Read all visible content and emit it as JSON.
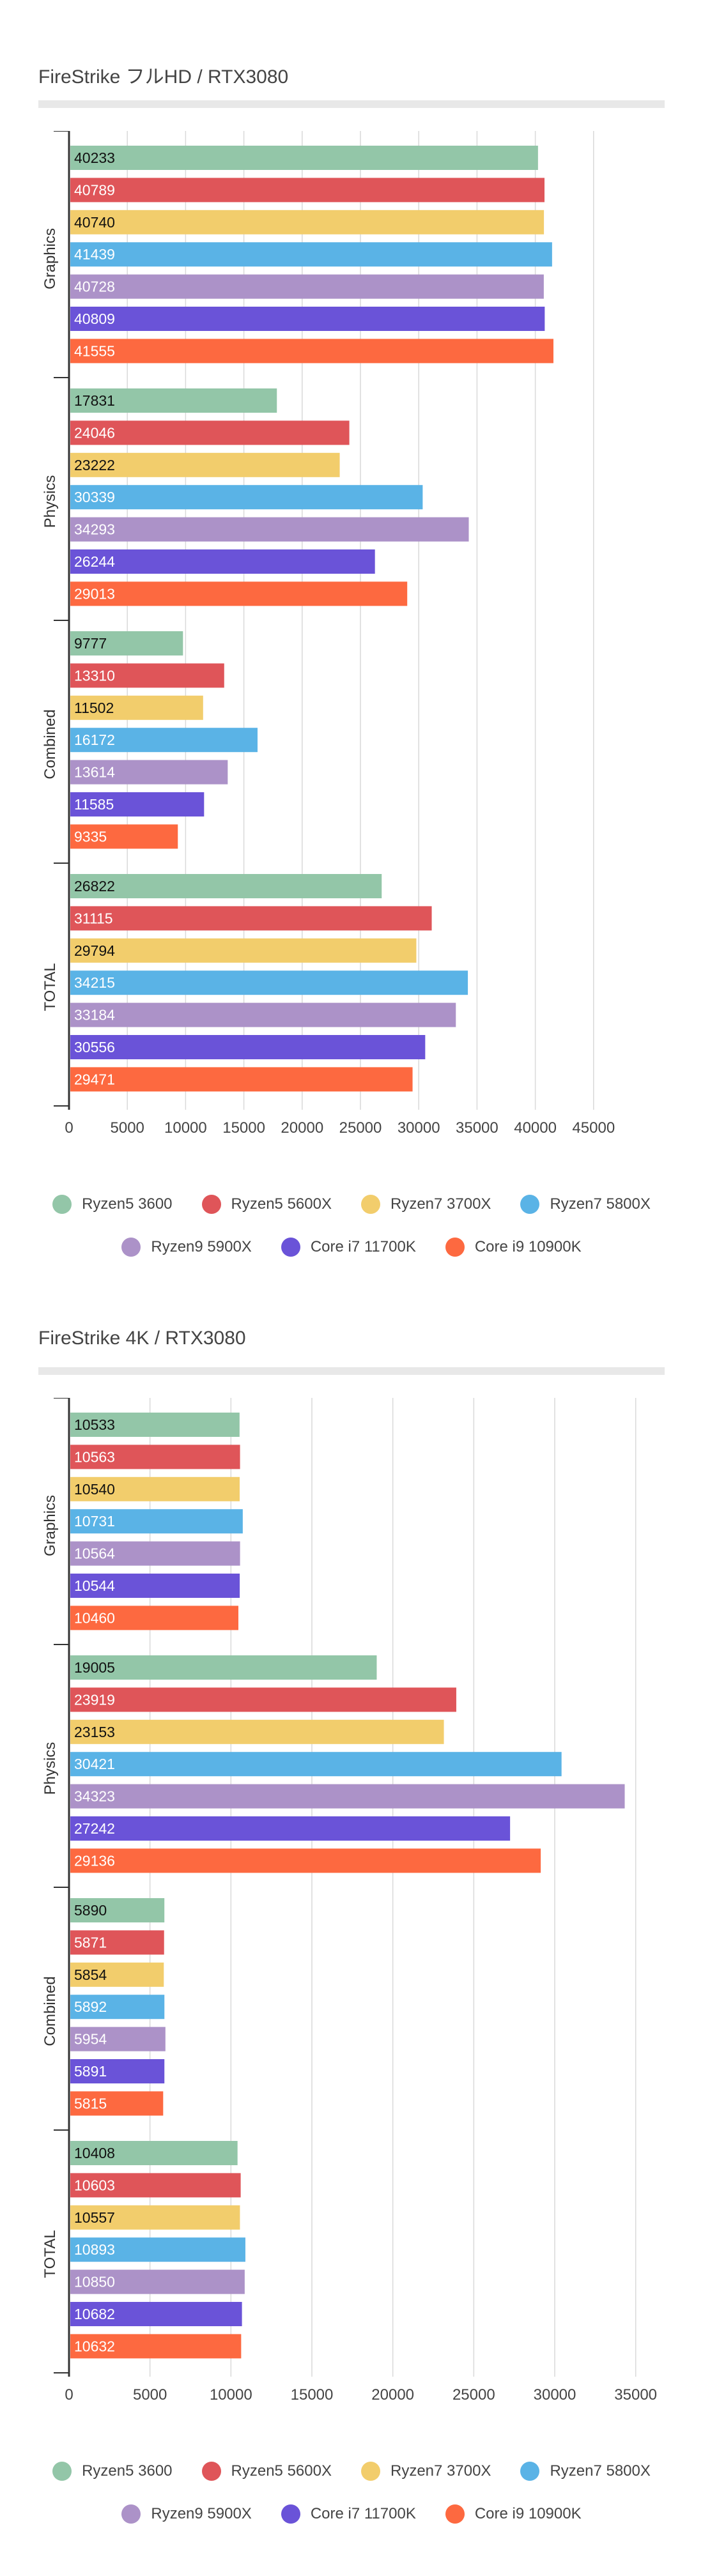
{
  "legend": [
    {
      "name": "Ryzen5 3600",
      "color": "#93c6a8"
    },
    {
      "name": "Ryzen5 5600X",
      "color": "#df5559"
    },
    {
      "name": "Ryzen7 3700X",
      "color": "#f2cd6c"
    },
    {
      "name": "Ryzen7 5800X",
      "color": "#5ab3e6"
    },
    {
      "name": "Ryzen9 5900X",
      "color": "#ac92c8"
    },
    {
      "name": "Core i7 11700K",
      "color": "#6a53d8"
    },
    {
      "name": "Core i9 10900K",
      "color": "#fd6940"
    }
  ],
  "chart_data": [
    {
      "type": "bar",
      "orientation": "horizontal",
      "title": "FireStrike フルHD / RTX3080",
      "categories": [
        "Graphics",
        "Physics",
        "Combined",
        "TOTAL"
      ],
      "xlim": [
        0,
        50000
      ],
      "xticks": [
        0,
        5000,
        10000,
        15000,
        20000,
        25000,
        30000,
        35000,
        40000,
        45000
      ],
      "grid": true,
      "legend_position": "bottom",
      "series": [
        {
          "name": "Ryzen5 3600",
          "color": "#93c6a8",
          "values": [
            40233,
            17831,
            9777,
            26822
          ]
        },
        {
          "name": "Ryzen5 5600X",
          "color": "#df5559",
          "values": [
            40789,
            24046,
            13310,
            31115
          ]
        },
        {
          "name": "Ryzen7 3700X",
          "color": "#f2cd6c",
          "values": [
            40740,
            23222,
            11502,
            29794
          ]
        },
        {
          "name": "Ryzen7 5800X",
          "color": "#5ab3e6",
          "values": [
            41439,
            30339,
            16172,
            34215
          ]
        },
        {
          "name": "Ryzen9 5900X",
          "color": "#ac92c8",
          "values": [
            40728,
            34293,
            13614,
            33184
          ]
        },
        {
          "name": "Core i7 11700K",
          "color": "#6a53d8",
          "values": [
            40809,
            26244,
            11585,
            30556
          ]
        },
        {
          "name": "Core i9 10900K",
          "color": "#fd6940",
          "values": [
            41555,
            29013,
            9335,
            29471
          ]
        }
      ]
    },
    {
      "type": "bar",
      "orientation": "horizontal",
      "title": "FireStrike 4K / RTX3080",
      "categories": [
        "Graphics",
        "Physics",
        "Combined",
        "TOTAL"
      ],
      "xlim": [
        0,
        36000
      ],
      "xticks": [
        0,
        5000,
        10000,
        15000,
        20000,
        25000,
        30000,
        35000
      ],
      "grid": true,
      "legend_position": "bottom",
      "series": [
        {
          "name": "Ryzen5 3600",
          "color": "#93c6a8",
          "values": [
            10533,
            19005,
            5890,
            10408
          ]
        },
        {
          "name": "Ryzen5 5600X",
          "color": "#df5559",
          "values": [
            10563,
            23919,
            5871,
            10603
          ]
        },
        {
          "name": "Ryzen7 3700X",
          "color": "#f2cd6c",
          "values": [
            10540,
            23153,
            5854,
            10557
          ]
        },
        {
          "name": "Ryzen7 5800X",
          "color": "#5ab3e6",
          "values": [
            10731,
            30421,
            5892,
            10893
          ]
        },
        {
          "name": "Ryzen9 5900X",
          "color": "#ac92c8",
          "values": [
            10564,
            34323,
            5954,
            10850
          ]
        },
        {
          "name": "Core i7 11700K",
          "color": "#6a53d8",
          "values": [
            10544,
            27242,
            5891,
            10682
          ]
        },
        {
          "name": "Core i9 10900K",
          "color": "#fd6940",
          "values": [
            10460,
            29136,
            5815,
            10632
          ]
        }
      ]
    }
  ]
}
